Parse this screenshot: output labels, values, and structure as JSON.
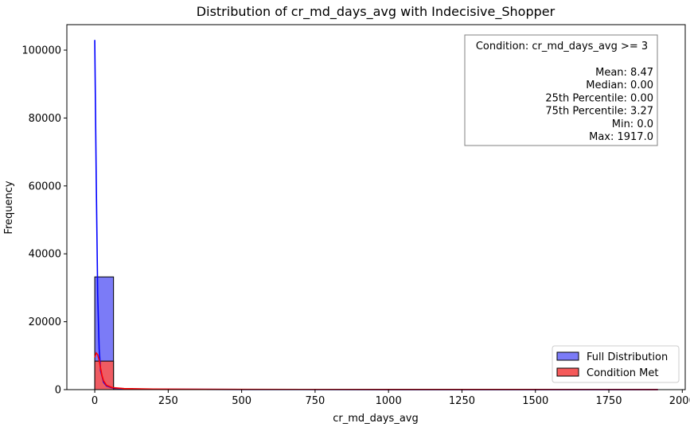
{
  "chart_data": {
    "type": "bar",
    "title": "Distribution of cr_md_days_avg with Indecisive_Shopper",
    "xlabel": "cr_md_days_avg",
    "ylabel": "Frequency",
    "xlim": [
      -95,
      2010
    ],
    "ylim": [
      0,
      107500
    ],
    "xticks": [
      0,
      250,
      500,
      750,
      1000,
      1250,
      1500,
      1750,
      2000
    ],
    "yticks": [
      0,
      20000,
      40000,
      60000,
      80000,
      100000
    ],
    "bin_width": 63.9,
    "series": [
      {
        "name": "Full Distribution",
        "color": "#7b7bf7",
        "kde_color": "#0000ff",
        "bins": [
          {
            "x0": 0,
            "x1": 63.9,
            "count": 33200
          },
          {
            "x0": 63.9,
            "x1": 127.8,
            "count": 300
          },
          {
            "x0": 127.8,
            "x1": 191.7,
            "count": 80
          }
        ],
        "kde": [
          [
            0,
            103000
          ],
          [
            5,
            62000
          ],
          [
            10,
            28000
          ],
          [
            15,
            12000
          ],
          [
            20,
            5500
          ],
          [
            30,
            2200
          ],
          [
            40,
            1100
          ],
          [
            60,
            500
          ],
          [
            100,
            250
          ],
          [
            200,
            120
          ],
          [
            500,
            50
          ],
          [
            1000,
            20
          ],
          [
            1917,
            5
          ]
        ]
      },
      {
        "name": "Condition Met",
        "color": "#f55a5a",
        "kde_color": "#ff0000",
        "bins": [
          {
            "x0": 0,
            "x1": 63.9,
            "count": 8400
          },
          {
            "x0": 63.9,
            "x1": 127.8,
            "count": 300
          },
          {
            "x0": 127.8,
            "x1": 191.7,
            "count": 80
          }
        ],
        "kde": [
          [
            0,
            9500
          ],
          [
            5,
            10800
          ],
          [
            10,
            10300
          ],
          [
            15,
            8700
          ],
          [
            20,
            6200
          ],
          [
            25,
            4000
          ],
          [
            30,
            2600
          ],
          [
            40,
            1300
          ],
          [
            60,
            600
          ],
          [
            100,
            300
          ],
          [
            200,
            150
          ],
          [
            500,
            70
          ],
          [
            1000,
            40
          ],
          [
            1917,
            25
          ]
        ]
      }
    ],
    "stats_box": {
      "condition": "Condition: cr_md_days_avg >= 3",
      "lines": [
        "Mean: 8.47",
        "Median: 0.00",
        "25th Percentile: 0.00",
        "75th Percentile: 3.27",
        "Min: 0.0",
        "Max: 1917.0"
      ],
      "position": "top-right"
    },
    "legend": {
      "position": "bottom-right",
      "entries": [
        "Full Distribution",
        "Condition Met"
      ]
    },
    "grid": false
  }
}
